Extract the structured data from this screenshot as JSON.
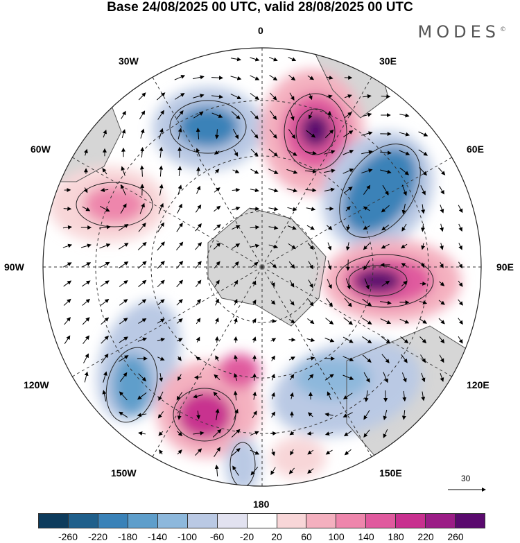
{
  "title": "Base 24/08/2025 00 UTC, valid 28/08/2025 00 UTC",
  "brand": "MODES",
  "brand_mark": "©",
  "longitude_labels": {
    "n0": "0",
    "e30": "30E",
    "e60": "60E",
    "e90": "90E",
    "e120": "120E",
    "e150": "150E",
    "s180": "180",
    "w150": "150W",
    "w120": "120W",
    "w90": "90W",
    "w60": "60W",
    "w30": "30W"
  },
  "wind_scale_label": "30",
  "colorbar": {
    "colors": [
      "#0d3b5c",
      "#1f5f8b",
      "#3a82b8",
      "#5e9ecb",
      "#8db8dc",
      "#bac9e4",
      "#e2e2f0",
      "#ffffff",
      "#f8d6d8",
      "#f4b0bf",
      "#ee86ac",
      "#e05a9e",
      "#c8308f",
      "#9b1d86",
      "#5a0a6e"
    ],
    "tick_labels": [
      "-260",
      "-220",
      "-180",
      "-140",
      "-100",
      "-60",
      "-20",
      "20",
      "60",
      "100",
      "140",
      "180",
      "220",
      "260"
    ]
  },
  "colors": {
    "land": "#b4b4b4",
    "grid": "#333333",
    "contour": "#222222"
  }
}
